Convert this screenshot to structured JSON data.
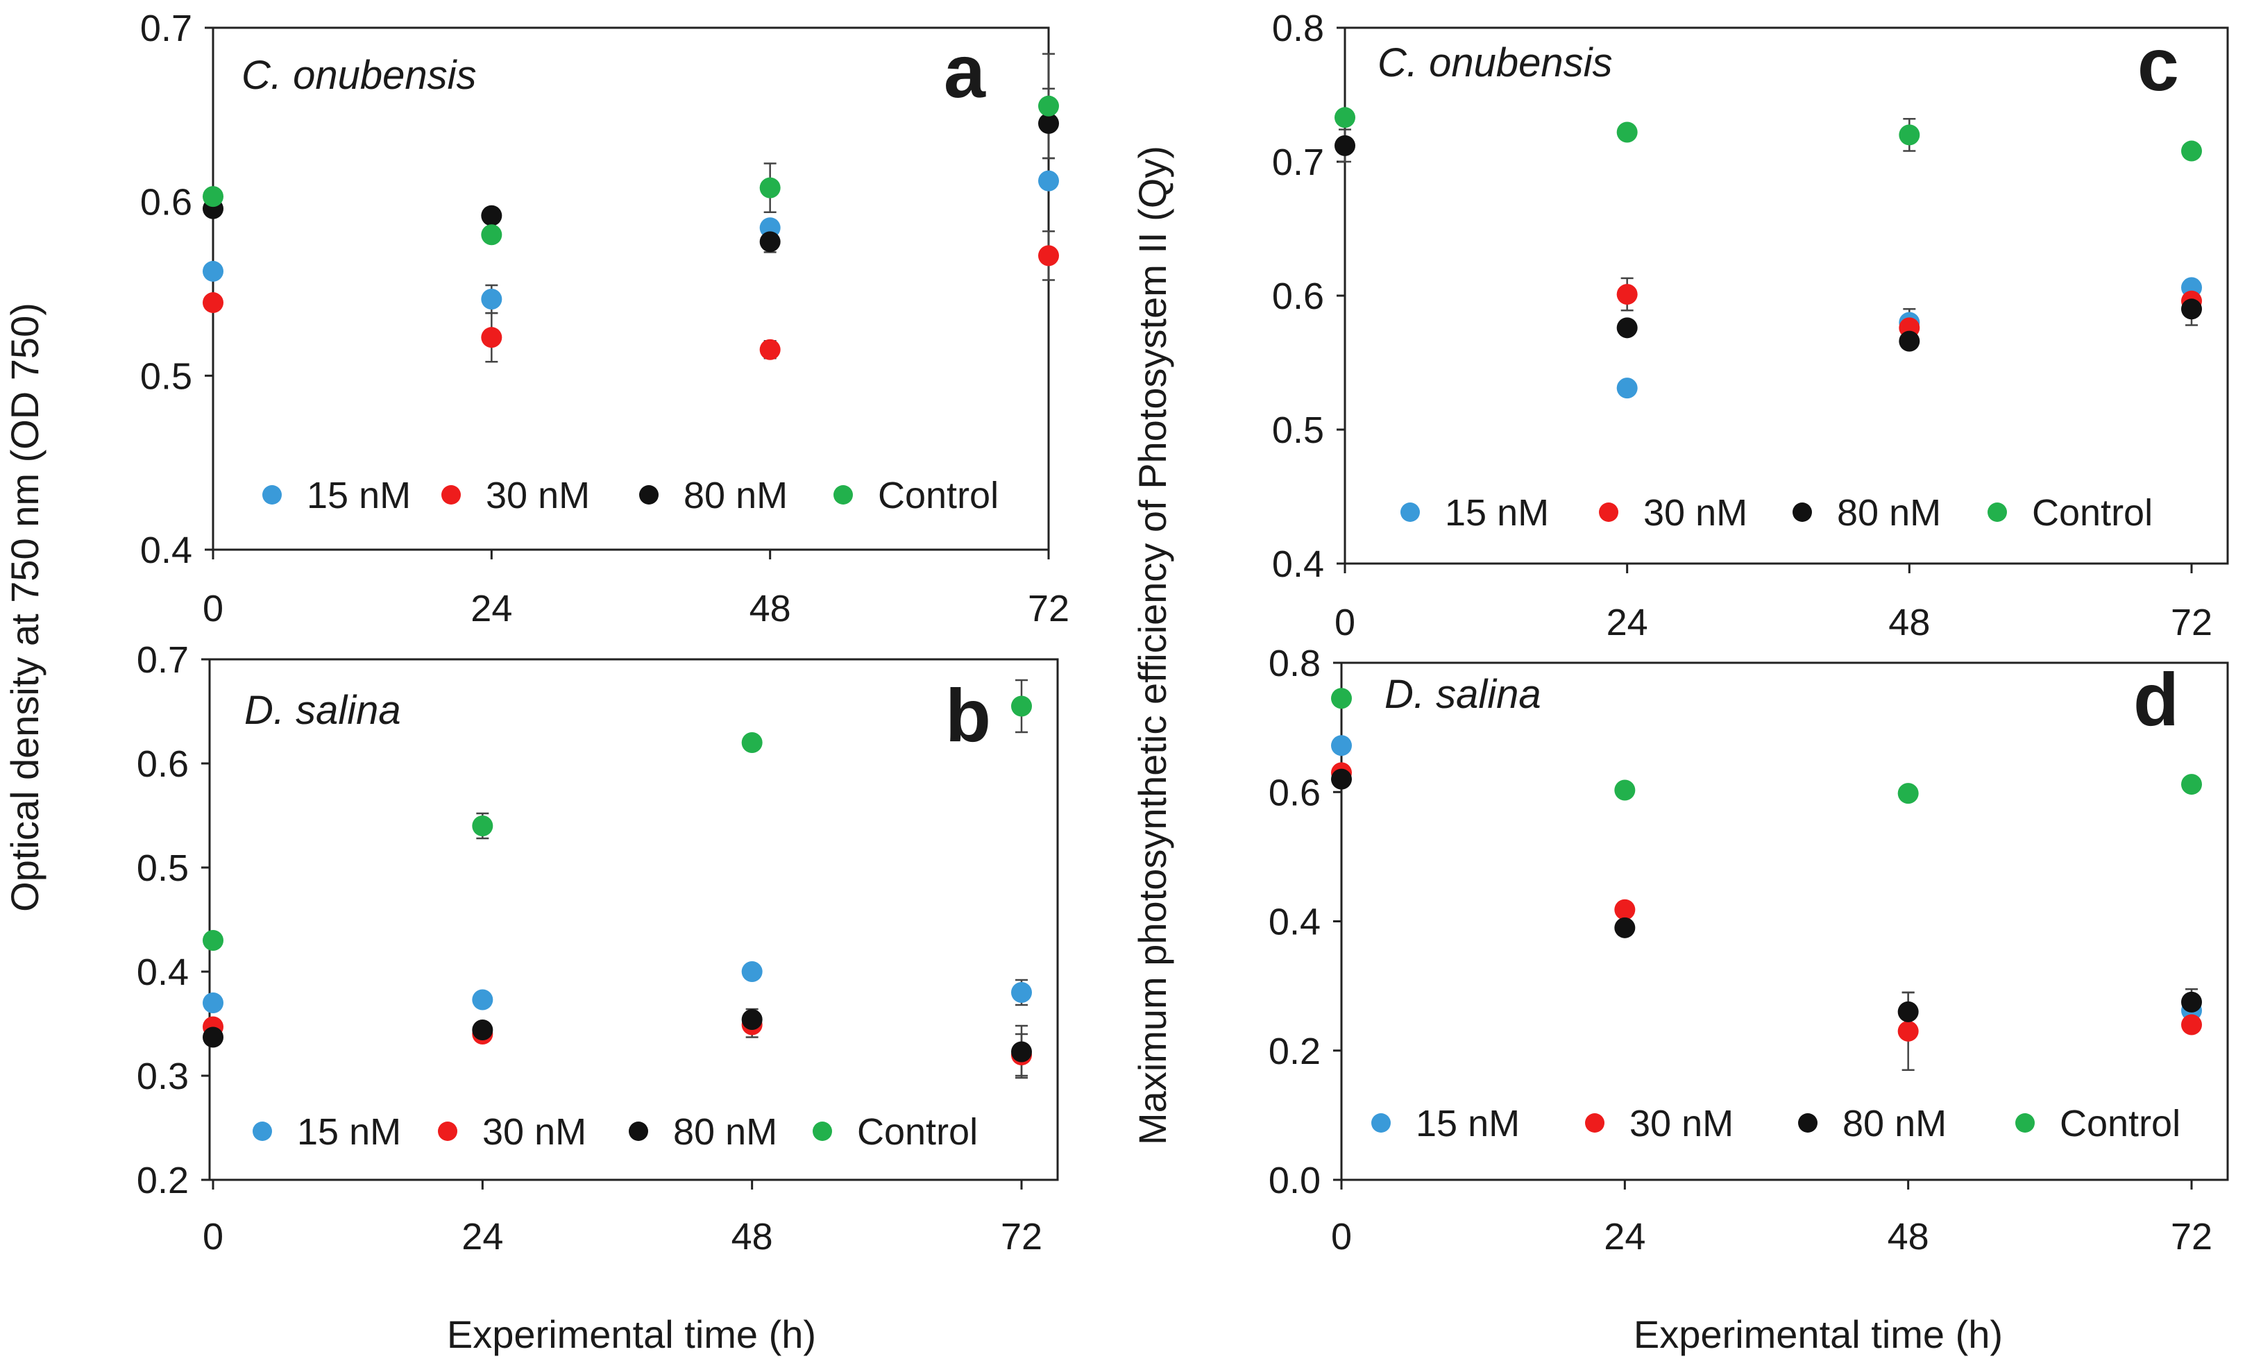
{
  "figure": {
    "shared_xlabel": "Experimental time (h)",
    "left_ylabel": "Optical density at 750 nm (OD 750)",
    "right_ylabel": "Maximum photosynthetic efficiency of Photosystem II (Qy)"
  },
  "series_colors": {
    "15 nM": "#3a9ad9",
    "30 nM": "#ee1c1c",
    "80 nM": "#111111",
    "Control": "#22b14c"
  },
  "chart_data": [
    {
      "id": "a",
      "type": "scatter",
      "letter": "a",
      "title": "C. onubensis",
      "xlabel": "Experimental time (h)",
      "ylabel": "Optical density at 750 nm (OD 750)",
      "x": [
        0,
        24,
        48,
        72
      ],
      "xlim": [
        0,
        72
      ],
      "ylim": [
        0.4,
        0.7
      ],
      "xticks": [
        "0",
        "24",
        "48",
        "72"
      ],
      "yticks": [
        "0.4",
        "0.5",
        "0.6",
        "0.7"
      ],
      "legend": [
        "15 nM",
        "30 nM",
        "80 nM",
        "Control"
      ],
      "legend_position": "bottom",
      "series": [
        {
          "name": "15 nM",
          "values": [
            0.56,
            0.544,
            0.585,
            0.612
          ],
          "errors": [
            0,
            0.008,
            0,
            0
          ]
        },
        {
          "name": "30 nM",
          "values": [
            0.542,
            0.522,
            0.515,
            0.569
          ],
          "errors": [
            0,
            0.014,
            0.005,
            0.014
          ]
        },
        {
          "name": "80 nM",
          "values": [
            0.596,
            0.592,
            0.577,
            0.645
          ],
          "errors": [
            0,
            0,
            0.006,
            0.02
          ]
        },
        {
          "name": "Control",
          "values": [
            0.603,
            0.581,
            0.608,
            0.655
          ],
          "errors": [
            0,
            0,
            0.014,
            0.03
          ]
        }
      ]
    },
    {
      "id": "b",
      "type": "scatter",
      "letter": "b",
      "title": "D. salina",
      "xlabel": "Experimental time (h)",
      "ylabel": "Optical density at 750 nm (OD 750)",
      "x": [
        0,
        24,
        48,
        72
      ],
      "xlim": [
        0,
        72
      ],
      "ylim": [
        0.2,
        0.7
      ],
      "xticks": [
        "0",
        "24",
        "48",
        "72"
      ],
      "yticks": [
        "0.2",
        "0.3",
        "0.4",
        "0.5",
        "0.6",
        "0.7"
      ],
      "legend": [
        "15 nM",
        "30 nM",
        "80 nM",
        "Control"
      ],
      "legend_position": "bottom",
      "series": [
        {
          "name": "15 nM",
          "values": [
            0.37,
            0.373,
            0.4,
            0.38
          ],
          "errors": [
            0,
            0,
            0,
            0.012
          ]
        },
        {
          "name": "30 nM",
          "values": [
            0.347,
            0.34,
            0.349,
            0.32
          ],
          "errors": [
            0,
            0,
            0.012,
            0.02
          ]
        },
        {
          "name": "80 nM",
          "values": [
            0.337,
            0.344,
            0.354,
            0.323
          ],
          "errors": [
            0,
            0,
            0.01,
            0.025
          ]
        },
        {
          "name": "Control",
          "values": [
            0.43,
            0.54,
            0.62,
            0.655
          ],
          "errors": [
            0,
            0.012,
            0,
            0.025
          ]
        }
      ]
    },
    {
      "id": "c",
      "type": "scatter",
      "letter": "c",
      "title": "C. onubensis",
      "xlabel": "Experimental time (h)",
      "ylabel": "Maximum photosynthetic efficiency of Photosystem II (Qy)",
      "x": [
        0,
        24,
        48,
        72
      ],
      "xlim": [
        0,
        72
      ],
      "ylim": [
        0.4,
        0.8
      ],
      "xticks": [
        "0",
        "24",
        "48",
        "72"
      ],
      "yticks": [
        "0.4",
        "0.5",
        "0.6",
        "0.7",
        "0.8"
      ],
      "legend": [
        "15 nM",
        "30 nM",
        "80 nM",
        "Control"
      ],
      "legend_position": "bottom",
      "series": [
        {
          "name": "15 nM",
          "values": [
            null,
            0.531,
            0.58,
            0.606
          ],
          "errors": [
            0,
            0,
            0.01,
            0
          ]
        },
        {
          "name": "30 nM",
          "values": [
            null,
            0.601,
            0.576,
            0.596
          ],
          "errors": [
            0,
            0.012,
            0,
            0
          ]
        },
        {
          "name": "80 nM",
          "values": [
            0.712,
            0.576,
            0.566,
            0.59
          ],
          "errors": [
            0.012,
            0,
            0,
            0.012
          ]
        },
        {
          "name": "Control",
          "values": [
            0.733,
            0.722,
            0.72,
            0.708
          ],
          "errors": [
            0,
            0,
            0.012,
            0
          ]
        }
      ]
    },
    {
      "id": "d",
      "type": "scatter",
      "letter": "d",
      "title": "D. salina",
      "xlabel": "Experimental time (h)",
      "ylabel": "Maximum photosynthetic efficiency of Photosystem II (Qy)",
      "x": [
        0,
        24,
        48,
        72
      ],
      "xlim": [
        0,
        72
      ],
      "ylim": [
        0.0,
        0.8
      ],
      "xticks": [
        "0",
        "24",
        "48",
        "72"
      ],
      "yticks": [
        "0.0",
        "0.2",
        "0.4",
        "0.6",
        "0.8"
      ],
      "legend": [
        "15 nM",
        "30 nM",
        "80 nM",
        "Control"
      ],
      "legend_position": "bottom",
      "series": [
        {
          "name": "15 nM",
          "values": [
            0.672,
            null,
            null,
            0.262
          ],
          "errors": [
            0,
            0,
            0,
            0
          ]
        },
        {
          "name": "30 nM",
          "values": [
            0.63,
            0.418,
            0.23,
            0.24
          ],
          "errors": [
            0,
            0,
            0.06,
            0
          ]
        },
        {
          "name": "80 nM",
          "values": [
            0.62,
            0.39,
            0.26,
            0.275
          ],
          "errors": [
            0,
            0,
            0.03,
            0.02
          ]
        },
        {
          "name": "Control",
          "values": [
            0.745,
            0.603,
            0.598,
            0.612
          ],
          "errors": [
            0,
            0,
            0,
            0
          ]
        }
      ]
    }
  ]
}
